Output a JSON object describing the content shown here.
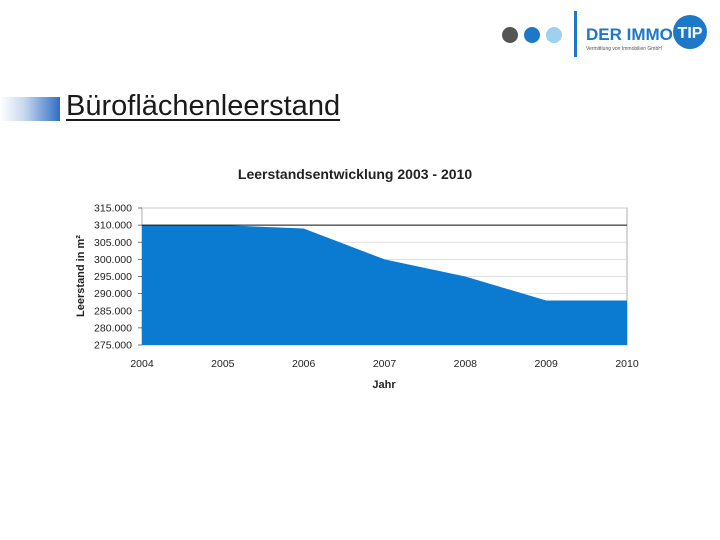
{
  "slide": {
    "title": "Büroflächenleerstand"
  },
  "logo": {
    "name_a": "DER IMMO",
    "name_b": "TIP",
    "tagline": "Vermittlung von Immobilien GmbH",
    "dot_colors": [
      "#555555",
      "#1d78c8",
      "#9fd0f0"
    ],
    "brand_color": "#1d78c8"
  },
  "chart_data": {
    "type": "area",
    "title": "Leerstandsentwicklung 2003 - 2010",
    "xlabel": "Jahr",
    "ylabel": "Leerstand in m²",
    "x": [
      2004,
      2005,
      2006,
      2007,
      2008,
      2009,
      2010
    ],
    "x_tick_labels": [
      "2004",
      "2005",
      "2006",
      "2007",
      "2008",
      "2009",
      "2010"
    ],
    "series": [
      {
        "values": [
          310000,
          310000,
          309000,
          300000,
          295000,
          288000,
          288000
        ]
      }
    ],
    "ylim": [
      275000,
      315000
    ],
    "y_ticks": [
      275000,
      280000,
      285000,
      290000,
      295000,
      300000,
      305000,
      310000,
      315000
    ],
    "y_tick_labels": [
      "275.000",
      "280.000",
      "285.000",
      "290.000",
      "295.000",
      "300.000",
      "305.000",
      "310.000",
      "315.000"
    ],
    "reference_line": 310000,
    "fill_color": "#0a7bd0",
    "grid": true,
    "legend": "none"
  }
}
